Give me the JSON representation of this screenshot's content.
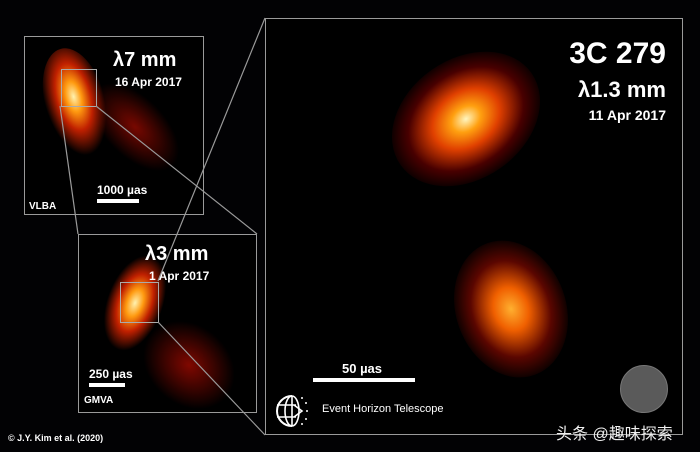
{
  "panel_7mm": {
    "wavelength": "λ7 mm",
    "date": "16 Apr 2017",
    "scale": "1000 µas",
    "array": "VLBA"
  },
  "panel_3mm": {
    "wavelength": "λ3 mm",
    "date": "1 Apr 2017",
    "scale": "250 µas",
    "array": "GMVA"
  },
  "panel_eht": {
    "source": "3C 279",
    "wavelength": "λ1.3 mm",
    "date": "11 Apr 2017",
    "scale": "50 µas",
    "logo_text": "Event Horizon Telescope"
  },
  "credit": "© J.Y. Kim et al. (2020)",
  "watermark": "头条 @趣味探索",
  "colors": {
    "frame": "#9a9a9a",
    "beam": "#5a5a5a",
    "emission_core": "#fff6c0",
    "emission_mid": "#ff8a00",
    "emission_outer": "#8a0000"
  }
}
